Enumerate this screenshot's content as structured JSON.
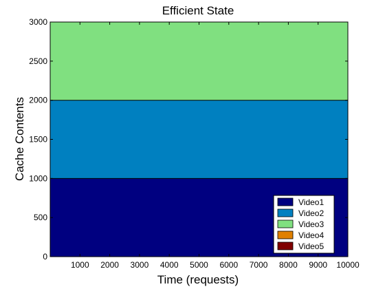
{
  "chart_data": {
    "type": "area",
    "stacked": true,
    "title": "Efficient State",
    "xlabel": "Time (requests)",
    "ylabel": "Cache Contents",
    "xlim": [
      0,
      10000
    ],
    "ylim": [
      0,
      3000
    ],
    "xticks": [
      1000,
      2000,
      3000,
      4000,
      5000,
      6000,
      7000,
      8000,
      9000,
      10000
    ],
    "xtick_labels": [
      "1000",
      "2000",
      "3000",
      "4000",
      "5000",
      "6000",
      "7000",
      "8000",
      "9000",
      "10000"
    ],
    "yticks": [
      0,
      500,
      1000,
      1500,
      2000,
      2500,
      3000
    ],
    "ytick_labels": [
      "0",
      "500",
      "1000",
      "1500",
      "2000",
      "2500",
      "3000"
    ],
    "grid": false,
    "legend_position": "bottom-right",
    "x": [
      0,
      10000
    ],
    "series": [
      {
        "name": "Video1",
        "color": "#000080",
        "values": [
          1000,
          1000
        ]
      },
      {
        "name": "Video2",
        "color": "#0080c0",
        "values": [
          1000,
          1000
        ]
      },
      {
        "name": "Video3",
        "color": "#80e080",
        "values": [
          1000,
          1000
        ]
      },
      {
        "name": "Video4",
        "color": "#e08000",
        "values": [
          0,
          0
        ]
      },
      {
        "name": "Video5",
        "color": "#800000",
        "values": [
          0,
          0
        ]
      }
    ]
  }
}
